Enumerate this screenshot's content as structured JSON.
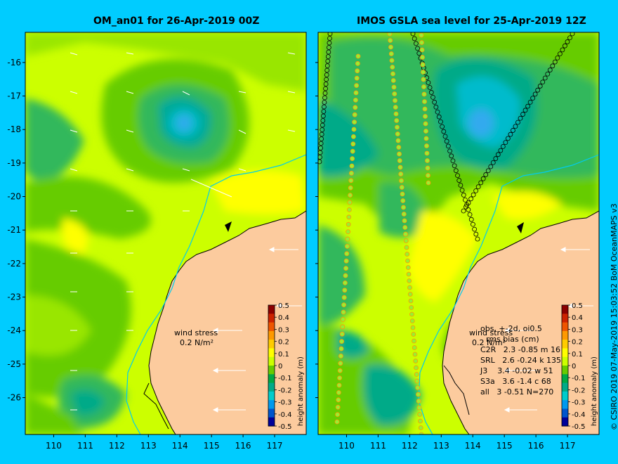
{
  "panels": [
    {
      "title": "OM_an01 for 26-Apr-2019 00Z"
    },
    {
      "title": "IMOS GSLA sea level  for 25-Apr-2019 12Z"
    }
  ],
  "wind_label": "wind stress",
  "wind_scale": "0.2 N/m²",
  "colorbar": {
    "label": "height anomaly (m)",
    "ticks": [
      "0.5",
      "0.4",
      "0.3",
      "0.2",
      "0.1",
      "0",
      "-0.1",
      "-0.2",
      "-0.3",
      "-0.4",
      "-0.5"
    ],
    "colors": [
      "#8b0000",
      "#cc2200",
      "#ee5500",
      "#ff9900",
      "#ffcc00",
      "#ffff00",
      "#ccff00",
      "#66cc00",
      "#00aa44",
      "#00aa88",
      "#00cccc",
      "#0099ee",
      "#0055cc",
      "#000099"
    ]
  },
  "stats": {
    "header": "obs, +-2d, oi0.5",
    "subheader": "rms bias (cm)",
    "rows": [
      "C2R   2.3 -0.85 m 16",
      "SRL   2.6 -0.24 k 135",
      "J3    3.4 -0.02 w 51",
      "S3a   3.6 -1.4 c 68",
      "all   3 -0.51 N=270"
    ]
  },
  "credit": "© CSIRO 2019   07-May-2019 15:03:52 BoM OceanMAPS v3",
  "chart_data": {
    "type": "heatmap",
    "x_ticks": [
      "110",
      "111",
      "112",
      "113",
      "114",
      "115",
      "116",
      "117"
    ],
    "y_ticks": [
      "-16",
      "-17",
      "-18",
      "-19",
      "-20",
      "-21",
      "-22",
      "-23",
      "-24",
      "-25",
      "-26"
    ],
    "xlim": [
      109.1,
      118
    ],
    "ylim": [
      -27.1,
      -15.1
    ],
    "xlabel": "",
    "ylabel": "",
    "colorbar_range": [
      -0.5,
      0.5
    ]
  }
}
